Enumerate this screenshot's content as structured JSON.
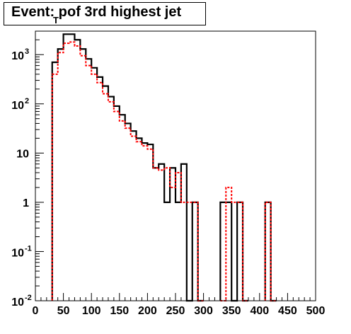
{
  "chart_data": {
    "type": "histogram",
    "title": {
      "main": "Event: p",
      "subscript": "T",
      "rest": " of 3rd highest jet"
    },
    "x": {
      "range": [
        0,
        500
      ],
      "bin_width": 10,
      "ticks": [
        0,
        50,
        100,
        150,
        200,
        250,
        300,
        350,
        400,
        450,
        500
      ],
      "tick_labels": [
        "0",
        "50",
        "100",
        "150",
        "200",
        "250",
        "300",
        "350",
        "400",
        "450",
        "500"
      ]
    },
    "y": {
      "scale": "log",
      "range": [
        0.01,
        3000
      ],
      "ticks": [
        0.01,
        0.1,
        1,
        10,
        100,
        1000
      ],
      "tick_labels": [
        {
          "base": "10",
          "exp": "-2"
        },
        {
          "base": "10",
          "exp": "-1"
        },
        {
          "base": "1",
          "exp": ""
        },
        {
          "base": "10",
          "exp": ""
        },
        {
          "base": "10",
          "exp": "2"
        },
        {
          "base": "10",
          "exp": "3"
        }
      ]
    },
    "series": [
      {
        "style": "solid",
        "color": "#000000",
        "bin_low_edges": [
          30,
          40,
          50,
          60,
          70,
          80,
          90,
          100,
          110,
          120,
          130,
          140,
          150,
          160,
          170,
          180,
          190,
          200,
          210,
          220,
          230,
          240,
          250,
          260,
          270,
          280,
          290,
          330,
          340,
          350,
          360,
          370,
          410,
          420
        ],
        "values": [
          700,
          1300,
          2600,
          2600,
          2000,
          1300,
          820,
          540,
          350,
          230,
          140,
          90,
          60,
          40,
          28,
          20,
          16,
          15,
          5,
          6,
          1,
          5,
          1,
          6,
          0,
          1,
          0,
          1,
          1,
          0,
          1,
          0,
          1,
          0
        ]
      },
      {
        "style": "dashed",
        "color": "#ff0000",
        "bin_low_edges": [
          30,
          40,
          50,
          60,
          70,
          80,
          90,
          100,
          110,
          120,
          130,
          140,
          150,
          160,
          170,
          180,
          190,
          200,
          210,
          220,
          230,
          240,
          250,
          260,
          270,
          280,
          290,
          330,
          340,
          350,
          360,
          370,
          410,
          420
        ],
        "values": [
          400,
          1100,
          1700,
          1800,
          1500,
          950,
          600,
          400,
          270,
          160,
          110,
          70,
          45,
          32,
          22,
          17,
          14,
          12,
          5,
          4.5,
          5,
          2,
          4,
          1,
          1,
          1,
          0,
          0,
          2,
          1,
          1,
          0,
          1,
          0
        ]
      }
    ]
  }
}
